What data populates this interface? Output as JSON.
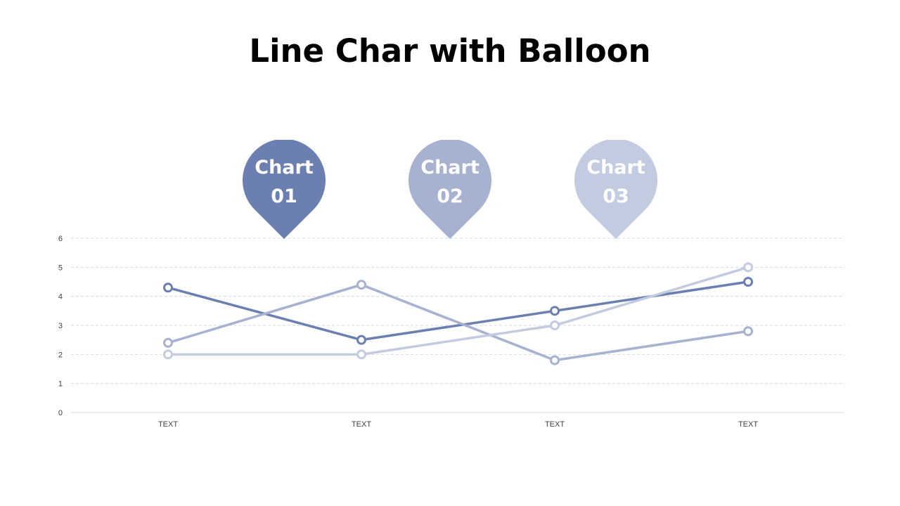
{
  "title": "Line Char with Balloon",
  "balloons": [
    {
      "line1": "Chart",
      "line2": "01",
      "color": "#6b80b0"
    },
    {
      "line1": "Chart",
      "line2": "02",
      "color": "#a6b2d0"
    },
    {
      "line1": "Chart",
      "line2": "03",
      "color": "#c3cbe0"
    }
  ],
  "chart_data": {
    "type": "line",
    "categories": [
      "TEXT",
      "TEXT",
      "TEXT",
      "TEXT"
    ],
    "ylim": [
      0,
      6
    ],
    "yticks": [
      "0",
      "1",
      "2",
      "3",
      "4",
      "5",
      "6"
    ],
    "grid": true,
    "series": [
      {
        "values": [
          4.3,
          2.5,
          3.5,
          4.5
        ],
        "color": "#6b80b0"
      },
      {
        "values": [
          2.4,
          4.4,
          1.8,
          2.8
        ],
        "color": "#a6b2d0"
      },
      {
        "values": [
          2.0,
          2.0,
          3.0,
          5.0
        ],
        "color": "#c3cbe0"
      }
    ]
  }
}
